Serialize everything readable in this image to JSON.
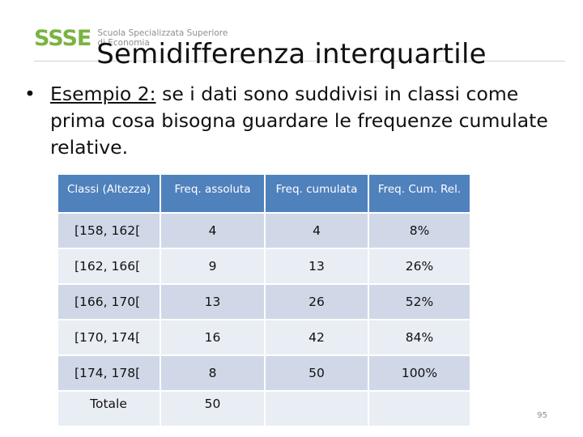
{
  "header": {
    "logo_mark": "SSSE",
    "logo_line1": "Scuola Specializzata Superiore",
    "logo_line2": "di Economia",
    "brand_color": "#7bb342"
  },
  "slide": {
    "title": "Semidifferenza interquartile",
    "bullet_symbol": "•",
    "bullet_label": "Esempio 2:",
    "bullet_text": " se i dati sono suddivisi in classi come prima cosa bisogna guardare le frequenze cumulate relative.",
    "page_number": "95"
  },
  "table": {
    "header_color": "#4f81bd",
    "headers": [
      "Classi (Altezza)",
      "Freq. assoluta",
      "Freq. cumulata",
      "Freq. Cum. Rel."
    ],
    "rows": [
      [
        "[158, 162[",
        "4",
        "4",
        "8%"
      ],
      [
        "[162, 166[",
        "9",
        "13",
        "26%"
      ],
      [
        "[166, 170[",
        "13",
        "26",
        "52%"
      ],
      [
        "[170, 174[",
        "16",
        "42",
        "84%"
      ],
      [
        "[174, 178[",
        "8",
        "50",
        "100%"
      ],
      [
        "Totale",
        "50",
        "",
        ""
      ]
    ]
  }
}
